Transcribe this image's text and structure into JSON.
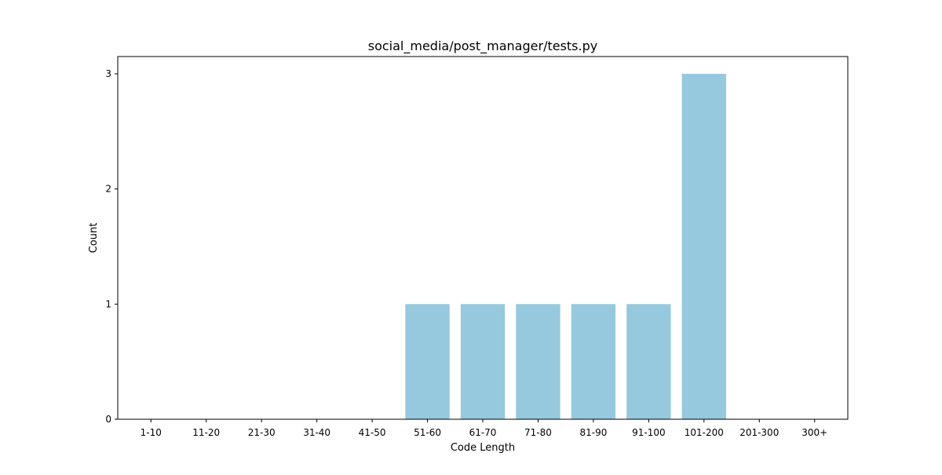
{
  "chart_data": {
    "type": "bar",
    "title": "social_media/post_manager/tests.py",
    "xlabel": "Code Length",
    "ylabel": "Count",
    "categories": [
      "1-10",
      "11-20",
      "21-30",
      "31-40",
      "41-50",
      "51-60",
      "61-70",
      "71-80",
      "81-90",
      "91-100",
      "101-200",
      "201-300",
      "300+"
    ],
    "values": [
      0,
      0,
      0,
      0,
      0,
      1,
      1,
      1,
      1,
      1,
      3,
      0,
      0
    ],
    "ylim": [
      0,
      3.15
    ],
    "yticks": [
      0,
      1,
      2,
      3
    ],
    "grid": false,
    "legend": "none",
    "bar_color": "#96c9dd"
  }
}
